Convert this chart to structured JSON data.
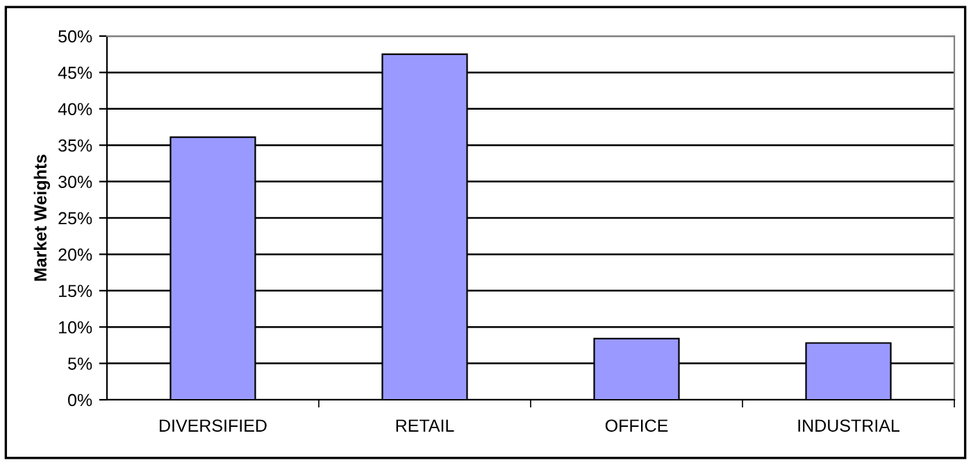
{
  "chart_data": {
    "type": "bar",
    "ylabel": "Market Weights",
    "categories": [
      "DIVERSIFIED",
      "RETAIL",
      "OFFICE",
      "INDUSTRIAL"
    ],
    "values": [
      36.1,
      47.5,
      8.4,
      7.8
    ],
    "color": "#9999ff",
    "ylim": [
      0,
      50
    ],
    "yticks": [
      {
        "value": 0,
        "label": "0%"
      },
      {
        "value": 5,
        "label": "5%"
      },
      {
        "value": 10,
        "label": "10%"
      },
      {
        "value": 15,
        "label": "15%"
      },
      {
        "value": 20,
        "label": "20%"
      },
      {
        "value": 25,
        "label": "25%"
      },
      {
        "value": 30,
        "label": "30%"
      },
      {
        "value": 35,
        "label": "35%"
      },
      {
        "value": 40,
        "label": "40%"
      },
      {
        "value": 45,
        "label": "45%"
      },
      {
        "value": 50,
        "label": "50%"
      }
    ],
    "grid": "y"
  }
}
